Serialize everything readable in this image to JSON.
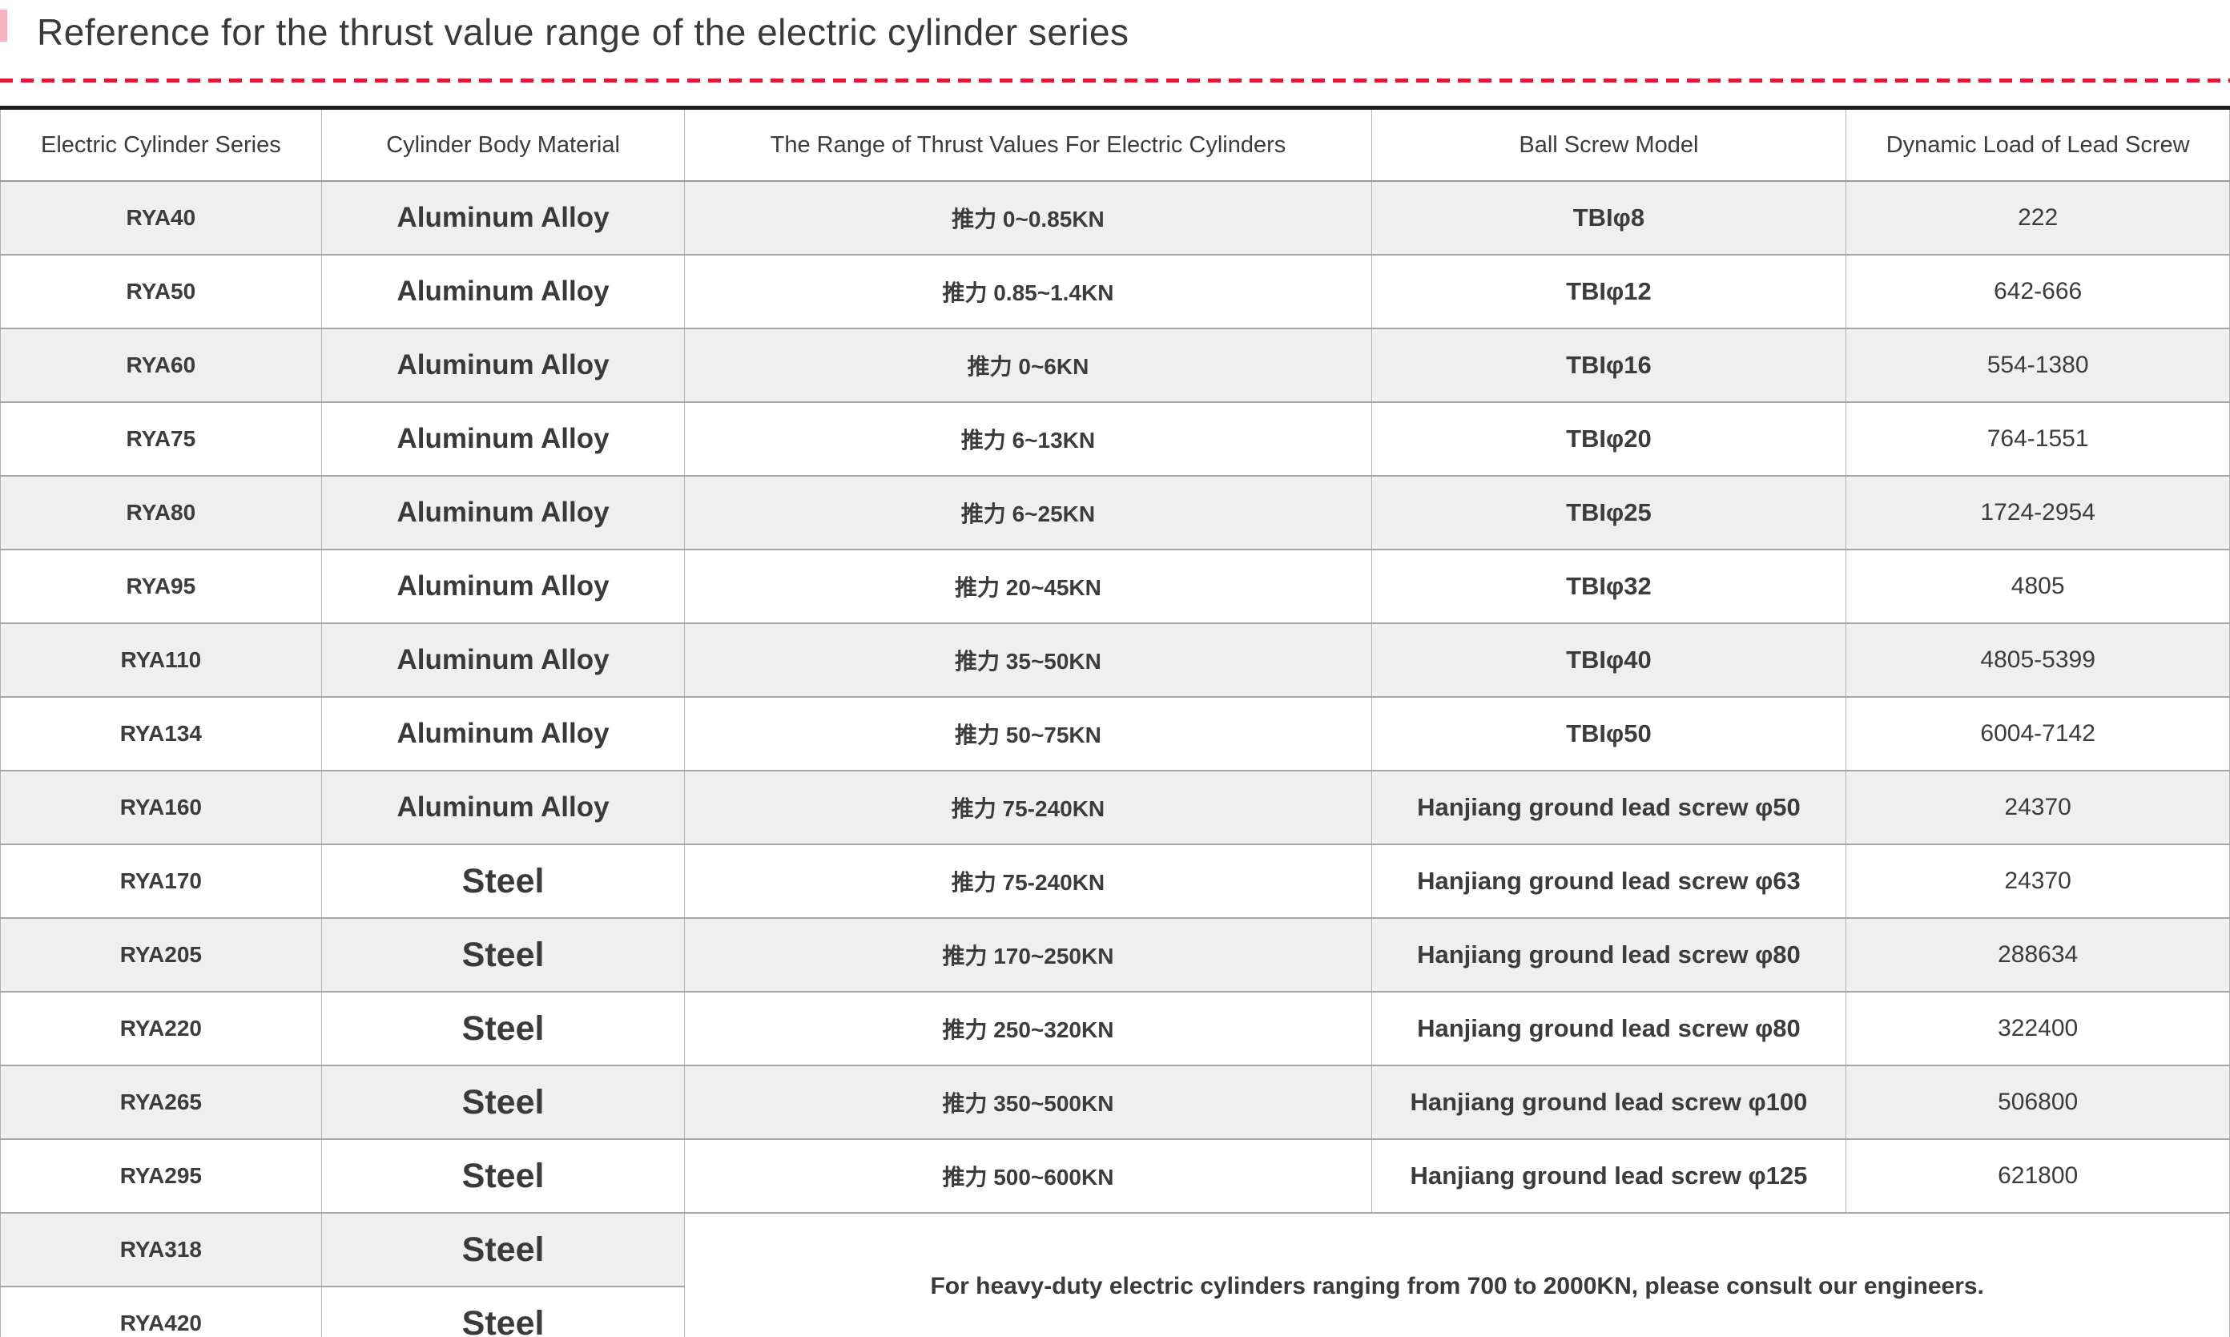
{
  "page": {
    "title": "Reference for the thrust value range of the electric cylinder series",
    "accent_color": "#e01937",
    "shaded_row_color": "#efefef"
  },
  "table": {
    "columns": [
      "Electric Cylinder Series",
      "Cylinder Body Material",
      "The Range of Thrust Values For Electric Cylinders",
      "Ball Screw Model",
      "Dynamic Load of Lead Screw"
    ],
    "rows": [
      {
        "series": "RYA40",
        "material": "Aluminum Alloy",
        "thrust": "推力 0~0.85KN",
        "screw": "TBIφ8",
        "load": "222"
      },
      {
        "series": "RYA50",
        "material": "Aluminum Alloy",
        "thrust": "推力 0.85~1.4KN",
        "screw": "TBIφ12",
        "load": "642-666"
      },
      {
        "series": "RYA60",
        "material": "Aluminum Alloy",
        "thrust": "推力 0~6KN",
        "screw": "TBIφ16",
        "load": "554-1380"
      },
      {
        "series": "RYA75",
        "material": "Aluminum Alloy",
        "thrust": "推力 6~13KN",
        "screw": "TBIφ20",
        "load": "764-1551"
      },
      {
        "series": "RYA80",
        "material": "Aluminum Alloy",
        "thrust": "推力 6~25KN",
        "screw": "TBIφ25",
        "load": "1724-2954"
      },
      {
        "series": "RYA95",
        "material": "Aluminum Alloy",
        "thrust": "推力 20~45KN",
        "screw": "TBIφ32",
        "load": "4805"
      },
      {
        "series": "RYA110",
        "material": "Aluminum Alloy",
        "thrust": "推力 35~50KN",
        "screw": "TBIφ40",
        "load": "4805-5399"
      },
      {
        "series": "RYA134",
        "material": "Aluminum Alloy",
        "thrust": "推力 50~75KN",
        "screw": "TBIφ50",
        "load": "6004-7142"
      },
      {
        "series": "RYA160",
        "material": "Aluminum Alloy",
        "thrust": "推力 75-240KN",
        "screw": "Hanjiang ground lead screw φ50",
        "load": "24370"
      },
      {
        "series": "RYA170",
        "material": "Steel",
        "thrust": "推力 75-240KN",
        "screw": "Hanjiang ground lead screw φ63",
        "load": "24370"
      },
      {
        "series": "RYA205",
        "material": "Steel",
        "thrust": "推力 170~250KN",
        "screw": "Hanjiang ground lead screw φ80",
        "load": "288634"
      },
      {
        "series": "RYA220",
        "material": "Steel",
        "thrust": "推力 250~320KN",
        "screw": "Hanjiang ground lead screw φ80",
        "load": "322400"
      },
      {
        "series": "RYA265",
        "material": "Steel",
        "thrust": "推力 350~500KN",
        "screw": "Hanjiang ground lead screw φ100",
        "load": "506800"
      },
      {
        "series": "RYA295",
        "material": "Steel",
        "thrust": "推力 500~600KN",
        "screw": "Hanjiang ground lead screw φ125",
        "load": "621800"
      },
      {
        "series": "RYA318",
        "material": "Steel",
        "note_anchor": true
      },
      {
        "series": "RYA420",
        "material": "Steel"
      }
    ],
    "note": "For heavy-duty electric cylinders ranging from 700 to 2000KN, please consult our engineers."
  }
}
